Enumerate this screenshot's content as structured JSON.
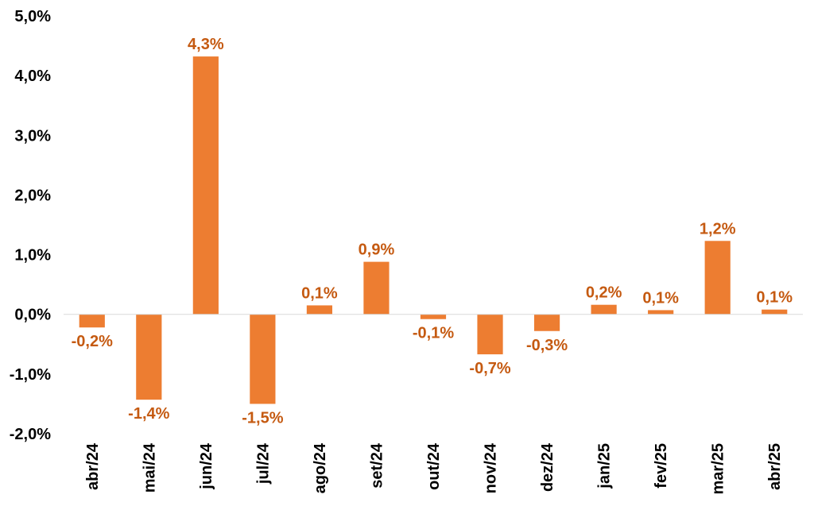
{
  "chart_data": {
    "type": "bar",
    "categories": [
      "abr/24",
      "mai/24",
      "jun/24",
      "jul/24",
      "ago/24",
      "set/24",
      "out/24",
      "nov/24",
      "dez/24",
      "jan/25",
      "fev/25",
      "mar/25",
      "abr/25"
    ],
    "values": [
      -0.22,
      -1.43,
      4.32,
      -1.5,
      0.15,
      0.88,
      -0.08,
      -0.67,
      -0.28,
      0.16,
      0.07,
      1.23,
      0.08
    ],
    "data_labels": [
      "-0,2%",
      "-1,4%",
      "4,3%",
      "-1,5%",
      "0,1%",
      "0,9%",
      "-0,1%",
      "-0,7%",
      "-0,3%",
      "0,2%",
      "0,1%",
      "1,2%",
      "0,1%"
    ],
    "y_ticks": [
      5,
      4,
      3,
      2,
      1,
      0,
      -1,
      -2
    ],
    "y_tick_labels": [
      "5,0%",
      "4,0%",
      "3,0%",
      "2,0%",
      "1,0%",
      "0,0%",
      "-1,0%",
      "-2,0%"
    ],
    "ylim": [
      -2,
      5
    ],
    "title": "",
    "xlabel": "",
    "ylabel": "",
    "grid": false,
    "legend": "none",
    "colors": {
      "bar": "#ED7D31",
      "label": "#C55A11",
      "axis": "#D9D9D9",
      "text": "#000000"
    }
  }
}
